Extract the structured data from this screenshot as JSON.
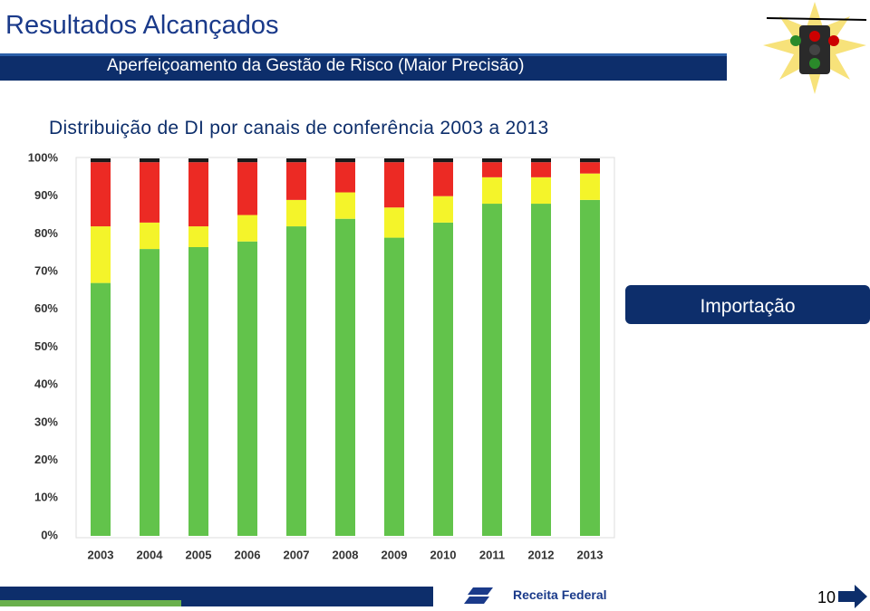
{
  "header": {
    "title": "Resultados Alcançados",
    "subtitle": "Aperfeiçoamento da Gestão de Risco (Maior Precisão)"
  },
  "chart_data": {
    "type": "stacked_bar",
    "title": "Distribuição de DI por canais de conferência 2003 a 2013",
    "categories": [
      "2003",
      "2004",
      "2005",
      "2006",
      "2007",
      "2008",
      "2009",
      "2010",
      "2011",
      "2012",
      "2013"
    ],
    "series": [
      {
        "color": "#62c34b",
        "values": [
          67,
          76,
          76.5,
          78,
          82,
          84,
          79,
          83,
          88,
          88,
          89
        ]
      },
      {
        "color": "#f4f42a",
        "values": [
          15,
          7,
          5.5,
          7,
          7,
          7,
          8,
          7,
          7,
          7,
          7
        ]
      },
      {
        "color": "#ec2a24",
        "values": [
          17,
          16,
          17,
          14,
          10,
          8,
          12,
          9,
          4,
          4,
          3
        ]
      },
      {
        "color": "#1a1a1a",
        "values": [
          1,
          1,
          1,
          1,
          1,
          1,
          1,
          1,
          1,
          1,
          1
        ]
      }
    ],
    "ylim": [
      0,
      100
    ],
    "yticks": [
      {
        "value": 0,
        "label": "0%"
      },
      {
        "value": 10,
        "label": "10%"
      },
      {
        "value": 20,
        "label": "20%"
      },
      {
        "value": 30,
        "label": "30%"
      },
      {
        "value": 40,
        "label": "40%"
      },
      {
        "value": 50,
        "label": "50%"
      },
      {
        "value": 60,
        "label": "60%"
      },
      {
        "value": 70,
        "label": "70%"
      },
      {
        "value": 80,
        "label": "80%"
      },
      {
        "value": 90,
        "label": "90%"
      },
      {
        "value": 100,
        "label": "100%"
      }
    ],
    "grid": false
  },
  "side_label": "Importação",
  "footer": {
    "logo_text": "Receita Federal",
    "page_number": "10"
  }
}
